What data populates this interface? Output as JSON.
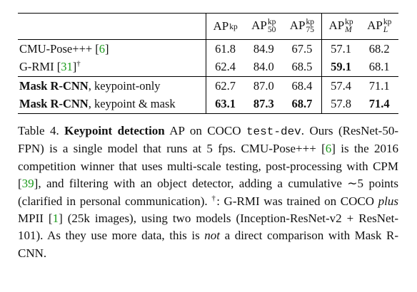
{
  "table": {
    "columns": [
      {
        "base": "AP",
        "sup": "kp"
      },
      {
        "base": "AP",
        "sup": "kp",
        "sub": "50"
      },
      {
        "base": "AP",
        "sup": "kp",
        "sub": "75"
      },
      {
        "base": "AP",
        "sup": "kp",
        "sub": "M",
        "sub_italic": true
      },
      {
        "base": "AP",
        "sup": "kp",
        "sub": "L",
        "sub_italic": true
      }
    ],
    "groups": [
      {
        "rows": [
          {
            "label": [
              {
                "text": "CMU-Pose+++ ["
              },
              {
                "text": "6",
                "style": "cite"
              },
              {
                "text": "]"
              }
            ],
            "values": [
              "61.8",
              "84.9",
              "67.5",
              "57.1",
              "68.2"
            ],
            "bold": [
              false,
              false,
              false,
              false,
              false
            ]
          },
          {
            "label": [
              {
                "text": "G-RMI ["
              },
              {
                "text": "31",
                "style": "cite"
              },
              {
                "text": "]"
              },
              {
                "text": "†",
                "style": "sup"
              }
            ],
            "values": [
              "62.4",
              "84.0",
              "68.5",
              "59.1",
              "68.1"
            ],
            "bold": [
              false,
              false,
              false,
              true,
              false
            ]
          }
        ]
      },
      {
        "rows": [
          {
            "label": [
              {
                "text": "Mask R-CNN",
                "style": "bold"
              },
              {
                "text": ", keypoint-only"
              }
            ],
            "values": [
              "62.7",
              "87.0",
              "68.4",
              "57.4",
              "71.1"
            ],
            "bold": [
              false,
              false,
              false,
              false,
              false
            ]
          },
          {
            "label": [
              {
                "text": "Mask R-CNN",
                "style": "bold"
              },
              {
                "text": ", keypoint & mask"
              }
            ],
            "values": [
              "63.1",
              "87.3",
              "68.7",
              "57.8",
              "71.4"
            ],
            "bold": [
              true,
              true,
              true,
              false,
              true
            ]
          }
        ]
      }
    ]
  },
  "caption": [
    {
      "text": "Table 4. "
    },
    {
      "text": "Keypoint detection",
      "style": "bold"
    },
    {
      "text": " AP on COCO "
    },
    {
      "text": "test-dev",
      "style": "mono"
    },
    {
      "text": ". Ours (ResNet-50-FPN) is a single model that runs at 5 fps. CMU-Pose+++ ["
    },
    {
      "text": "6",
      "style": "cite"
    },
    {
      "text": "] is the 2016 competition winner that uses multi-scale testing, post-processing with CPM ["
    },
    {
      "text": "39",
      "style": "cite"
    },
    {
      "text": "], and filtering with an object detector, adding a cumulative ∼5 points (clarified in personal communication). "
    },
    {
      "text": "†",
      "style": "sup"
    },
    {
      "text": ": G-RMI was trained on COCO "
    },
    {
      "text": "plus",
      "style": "italic"
    },
    {
      "text": " MPII ["
    },
    {
      "text": "1",
      "style": "cite"
    },
    {
      "text": "] (25k images), using two models (Inception-ResNet-v2 + ResNet-101). As they use more data, this is "
    },
    {
      "text": "not",
      "style": "italic"
    },
    {
      "text": " a direct comparison with Mask R-CNN."
    }
  ]
}
